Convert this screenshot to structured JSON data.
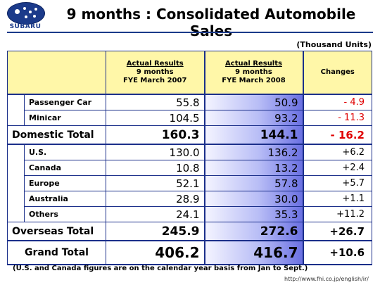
{
  "header": {
    "brand": "SUBARU",
    "title": "9 months : Consolidated Automobile Sales"
  },
  "units": "(Thousand Units)",
  "columns": [
    {
      "l1": "Actual Results",
      "l2": "9 months",
      "l3": "FYE March 2007"
    },
    {
      "l1": "Actual Results",
      "l2": "9 months",
      "l3": "FYE March 2008"
    },
    {
      "l1": "Changes"
    }
  ],
  "rows": {
    "passenger": {
      "label": "Passenger Car",
      "v2007": "55.8",
      "v2008": "50.9",
      "change": "- 4.9"
    },
    "minicar": {
      "label": "Minicar",
      "v2007": "104.5",
      "v2008": "93.2",
      "change": "- 11.3"
    },
    "domestic_total": {
      "label": "Domestic Total",
      "v2007": "160.3",
      "v2008": "144.1",
      "change": "- 16.2"
    },
    "us": {
      "label": "U.S.",
      "v2007": "130.0",
      "v2008": "136.2",
      "change": "+6.2"
    },
    "canada": {
      "label": "Canada",
      "v2007": "10.8",
      "v2008": "13.2",
      "change": "+2.4"
    },
    "europe": {
      "label": "Europe",
      "v2007": "52.1",
      "v2008": "57.8",
      "change": "+5.7"
    },
    "australia": {
      "label": "Australia",
      "v2007": "28.9",
      "v2008": "30.0",
      "change": "+1.1"
    },
    "others": {
      "label": "Others",
      "v2007": "24.1",
      "v2008": "35.3",
      "change": "+11.2"
    },
    "overseas_total": {
      "label": "Overseas Total",
      "v2007": "245.9",
      "v2008": "272.6",
      "change": "+26.7"
    },
    "grand_total": {
      "label": "Grand Total",
      "v2007": "406.2",
      "v2008": "416.7",
      "change": "+10.6"
    }
  },
  "footnote": "(U.S. and Canada figures are on the calendar year basis from Jan to Sept.)",
  "url": "http://www.fhi.co.jp/english/ir/",
  "colors": {
    "brand_blue": "#1b3a8a",
    "header_fill": "#fff7a8",
    "negative_change": "#e00000"
  }
}
